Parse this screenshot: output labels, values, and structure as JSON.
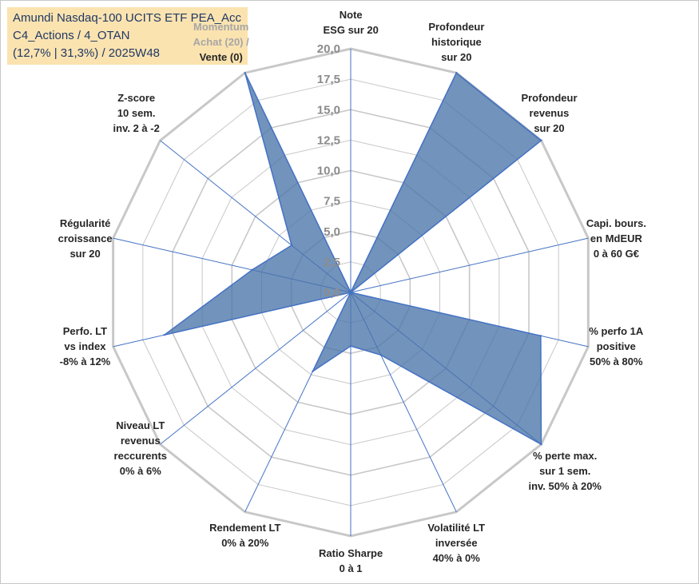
{
  "title": {
    "line1": "Amundi Nasdaq-100 UCITS ETF PEA_Acc",
    "line2": "C4_Actions / 4_OTAN",
    "line3": "(12,7% | 31,3%) / 2025W48"
  },
  "chart_data": {
    "type": "radar",
    "title": "Amundi Nasdaq-100 UCITS ETF PEA_Acc",
    "rmin": 0,
    "rmax": 20,
    "tick_step": 2.5,
    "tick_labels": [
      "0,0",
      "2,5",
      "5,0",
      "7,5",
      "10,0",
      "12,5",
      "15,0",
      "17,5",
      "20,0"
    ],
    "axes": [
      {
        "lines": [
          "Note",
          "ESG sur 20"
        ]
      },
      {
        "lines": [
          "Profondeur",
          "historique",
          "sur 20"
        ]
      },
      {
        "lines": [
          "Profondeur",
          "revenus",
          "sur 20"
        ]
      },
      {
        "lines": [
          "Capi. bours.",
          "en MdEUR",
          "0 à 60 G€"
        ]
      },
      {
        "lines": [
          "% perfo 1A",
          "positive",
          "50% à 80%"
        ]
      },
      {
        "lines": [
          "% perte max.",
          "sur 1 sem.",
          "inv. 50% à 20%"
        ]
      },
      {
        "lines": [
          "Volatilité LT",
          "inversée",
          "40% à 0%"
        ]
      },
      {
        "lines": [
          "Ratio Sharpe",
          "0 à 1"
        ]
      },
      {
        "lines": [
          "Rendement LT",
          "0% à 20%"
        ]
      },
      {
        "lines": [
          "Niveau LT",
          "revenus",
          "reccurents",
          "0% à 6%"
        ]
      },
      {
        "lines": [
          "Perfo. LT",
          "vs index",
          "-8% à 12%"
        ]
      },
      {
        "lines": [
          "Régularité",
          "croissance",
          "sur 20"
        ]
      },
      {
        "lines": [
          "Z-score",
          "10 sem.",
          "inv. 2 à -2"
        ]
      },
      {
        "lines": [
          "Momentum",
          "Achat (20) /",
          "Vente (0)"
        ],
        "muted_lines": 2
      }
    ],
    "series": [
      {
        "name": "Amundi Nasdaq-100 UCITS ETF PEA_Acc",
        "values": [
          0,
          20,
          20,
          0,
          16,
          20,
          5.7,
          4.4,
          7.2,
          0,
          15.7,
          8.3,
          6.2,
          20
        ]
      }
    ],
    "colors": {
      "fill": "#4a75a9",
      "stroke": "#4472c4",
      "grid": "#c8c8c8",
      "axis": "#4472c4",
      "title_bg": "#fbe3b0",
      "title_text": "#1f3864"
    }
  }
}
